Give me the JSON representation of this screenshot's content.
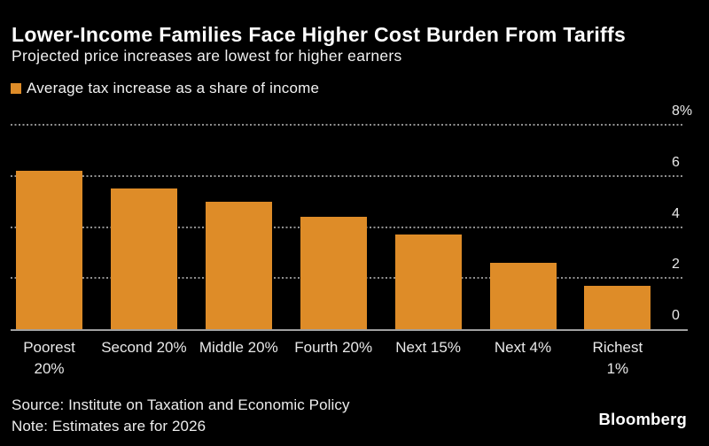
{
  "header": {
    "title": "Lower-Income Families Face Higher Cost Burden From Tariffs",
    "subtitle": "Projected price increases are lowest for higher earners"
  },
  "legend": {
    "label": "Average tax increase as a share of income"
  },
  "chart_data": {
    "type": "bar",
    "title": "Lower-Income Families Face Higher Cost Burden From Tariffs",
    "subtitle": "Projected price increases are lowest for higher earners",
    "series_name": "Average tax increase as a share of income",
    "categories": [
      "Poorest 20%",
      "Second 20%",
      "Middle 20%",
      "Fourth 20%",
      "Next 15%",
      "Next 4%",
      "Richest 1%"
    ],
    "x_tick_display": [
      "Poorest\n20%",
      "Second 20%",
      "Middle 20%",
      "Fourth 20%",
      "Next 15%",
      "Next 4%",
      "Richest 1%"
    ],
    "values": [
      6.2,
      5.5,
      5.0,
      4.4,
      3.7,
      2.6,
      1.7
    ],
    "unit": "%",
    "ylim": [
      0,
      8
    ],
    "yticks": [
      0,
      2,
      4,
      6,
      8
    ],
    "ytick_labels": [
      "0",
      "2",
      "4",
      "6",
      "8%"
    ],
    "grid": "horizontal-dotted",
    "legend_position": "top-left",
    "bar_color": "#DE8C28",
    "background_color": "#000000"
  },
  "footer": {
    "source": "Source: Institute on Taxation and Economic Policy",
    "note": "Note: Estimates are for 2026",
    "brand": "Bloomberg"
  }
}
